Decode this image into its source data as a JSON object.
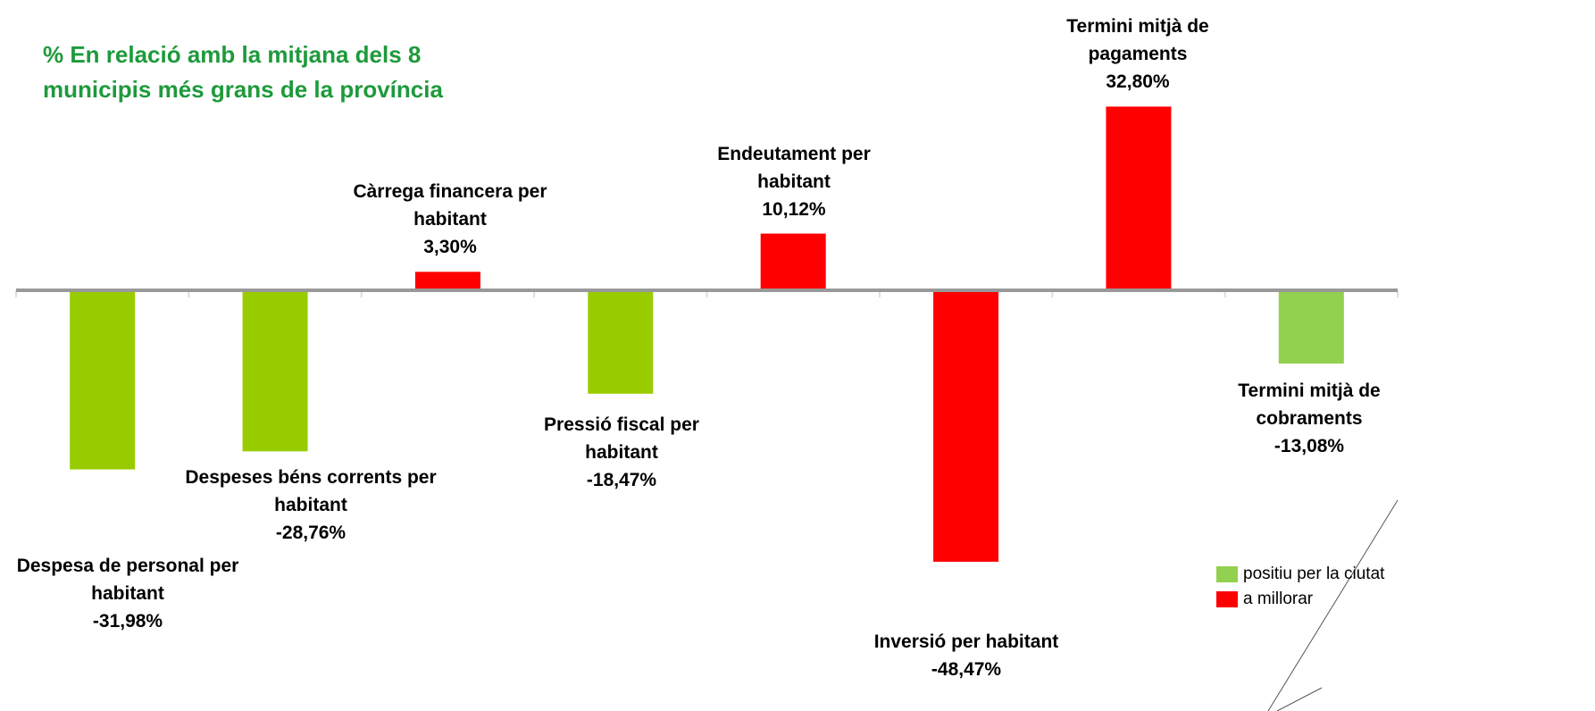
{
  "chart_data": {
    "type": "bar",
    "title": "% En relació amb la mitjana dels 8 municipis més grans de la província",
    "categories": [
      "Despesa de personal per habitant",
      "Despeses béns corrents per habitant",
      "Càrrega financera per habitant",
      "Pressió fiscal per habitant",
      "Endeutament per habitant",
      "Inversió per habitant",
      "Termini mitjà de pagaments",
      "Termini mitjà de cobraments"
    ],
    "values": [
      -31.98,
      -28.76,
      3.3,
      -18.47,
      10.12,
      -48.47,
      32.8,
      -13.08
    ],
    "value_labels": [
      "-31,98%",
      "-28,76%",
      "3,30%",
      "-18,47%",
      "10,12%",
      "-48,47%",
      "32,80%",
      "-13,08%"
    ],
    "colors": [
      "#99cc00",
      "#99cc00",
      "#ff0000",
      "#99cc00",
      "#ff0000",
      "#ff0000",
      "#ff0000",
      "#92d050"
    ],
    "legend": [
      {
        "name": "positiu per la ciutat",
        "color": "#92d050"
      },
      {
        "name": "a millorar",
        "color": "#ff0000"
      }
    ]
  }
}
